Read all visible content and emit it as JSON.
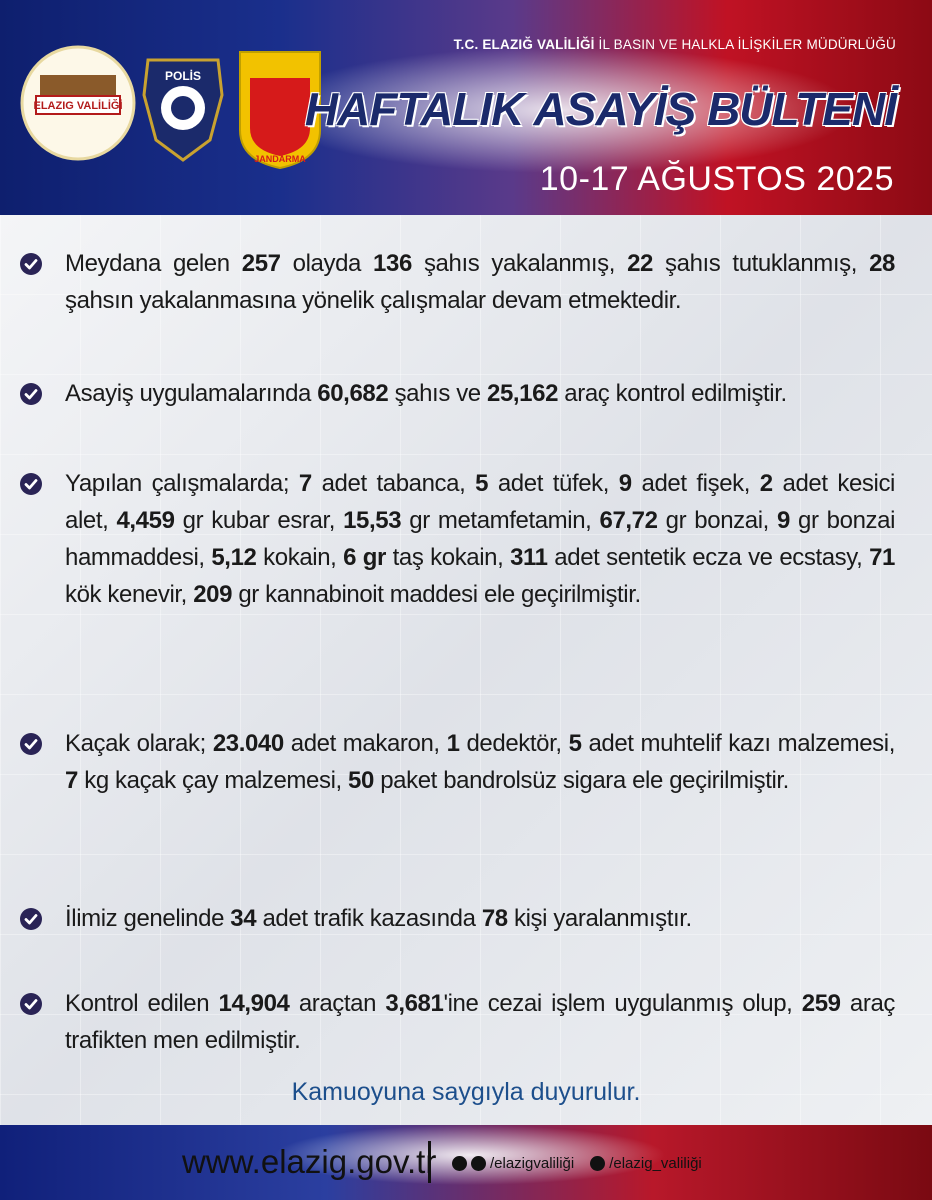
{
  "header": {
    "agency": [
      "T.C. ELAZIĞ VALİLİĞİ",
      "İL BASIN VE HALKLA İLİŞKİLER MÜDÜRLÜĞÜ"
    ],
    "title": "HAFTALIK ASAYİŞ BÜLTENİ",
    "date": "10-17 AĞUSTOS 2025"
  },
  "logos": {
    "valilik": "ELAZIG VALİLİĞİ",
    "polis": "POLİS",
    "jandarma": "JANDARMA"
  },
  "items": [
    [
      {
        "text": "Meydana gelen ",
        "bold": false
      },
      {
        "text": "257",
        "bold": true
      },
      {
        "text": " olayda ",
        "bold": false
      },
      {
        "text": "136",
        "bold": true
      },
      {
        "text": " şahıs yakalanmış, ",
        "bold": false
      },
      {
        "text": "22",
        "bold": true
      },
      {
        "text": " şahıs tutuklanmış, ",
        "bold": false
      },
      {
        "text": "28",
        "bold": true
      },
      {
        "text": " şahsın yakalanmasına yönelik çalışmalar devam etmektedir.",
        "bold": false
      }
    ],
    [
      {
        "text": "Asayiş uygulamalarında ",
        "bold": false
      },
      {
        "text": "60,682",
        "bold": true
      },
      {
        "text": " şahıs ve ",
        "bold": false
      },
      {
        "text": "25,162",
        "bold": true
      },
      {
        "text": " araç kontrol edilmiştir.",
        "bold": false
      }
    ],
    [
      {
        "text": "Yapılan çalışmalarda; ",
        "bold": false
      },
      {
        "text": "7",
        "bold": true
      },
      {
        "text": " adet tabanca, ",
        "bold": false
      },
      {
        "text": "5",
        "bold": true
      },
      {
        "text": " adet tüfek, ",
        "bold": false
      },
      {
        "text": "9",
        "bold": true
      },
      {
        "text": " adet fişek, ",
        "bold": false
      },
      {
        "text": "2",
        "bold": true
      },
      {
        "text": " adet kesici alet, ",
        "bold": false
      },
      {
        "text": "4,459",
        "bold": true
      },
      {
        "text": " gr kubar esrar, ",
        "bold": false
      },
      {
        "text": "15,53",
        "bold": true
      },
      {
        "text": " gr metamfetamin, ",
        "bold": false
      },
      {
        "text": "67,72",
        "bold": true
      },
      {
        "text": " gr bonzai, ",
        "bold": false
      },
      {
        "text": "9",
        "bold": true
      },
      {
        "text": " gr bonzai hammaddesi, ",
        "bold": false
      },
      {
        "text": "5,12",
        "bold": true
      },
      {
        "text": " kokain, ",
        "bold": false
      },
      {
        "text": "6 gr",
        "bold": true
      },
      {
        "text": " taş kokain, ",
        "bold": false
      },
      {
        "text": "311",
        "bold": true
      },
      {
        "text": " adet sentetik ecza ve ecstasy, ",
        "bold": false
      },
      {
        "text": "71",
        "bold": true
      },
      {
        "text": " kök kenevir, ",
        "bold": false
      },
      {
        "text": "209",
        "bold": true
      },
      {
        "text": " gr kannabinoit maddesi ele geçirilmiştir.",
        "bold": false
      }
    ],
    [
      {
        "text": "Kaçak olarak; ",
        "bold": false
      },
      {
        "text": "23.040",
        "bold": true
      },
      {
        "text": " adet makaron, ",
        "bold": false
      },
      {
        "text": "1",
        "bold": true
      },
      {
        "text": " dedektör, ",
        "bold": false
      },
      {
        "text": "5",
        "bold": true
      },
      {
        "text": " adet muhtelif kazı malzemesi, ",
        "bold": false
      },
      {
        "text": "7",
        "bold": true
      },
      {
        "text": " kg kaçak çay malzemesi, ",
        "bold": false
      },
      {
        "text": "50",
        "bold": true
      },
      {
        "text": " paket bandrolsüz sigara ele geçirilmiştir.",
        "bold": false
      }
    ],
    [
      {
        "text": "İlimiz genelinde ",
        "bold": false
      },
      {
        "text": "34",
        "bold": true
      },
      {
        "text": " adet trafik kazasında ",
        "bold": false
      },
      {
        "text": "78",
        "bold": true
      },
      {
        "text": " kişi yaralanmıştır.",
        "bold": false
      }
    ],
    [
      {
        "text": "Kontrol edilen ",
        "bold": false
      },
      {
        "text": "14,904",
        "bold": true
      },
      {
        "text": " araçtan ",
        "bold": false
      },
      {
        "text": "3,681",
        "bold": true
      },
      {
        "text": "'ine cezai işlem uygulanmış olup, ",
        "bold": false
      },
      {
        "text": "259",
        "bold": true
      },
      {
        "text": " araç trafikten men edilmiştir.",
        "bold": false
      }
    ]
  ],
  "closing": "Kamuoyuna saygıyla duyurulur.",
  "footer": {
    "website": "www.elazig.gov.tr",
    "facebook_instagram": "/elazigvaliliği",
    "x": "/elazig_valiliği"
  }
}
